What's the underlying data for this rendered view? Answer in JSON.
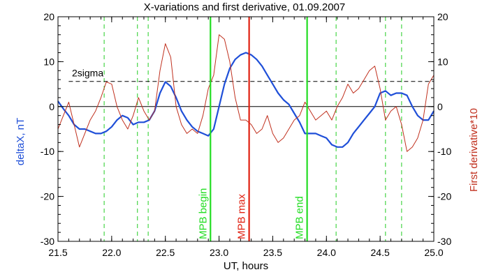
{
  "chart_data": {
    "type": "line",
    "title": "X-variations and first derivative, 01.09.2007",
    "xlabel": "UT, hours",
    "ylabel_left": "deltaX, nT",
    "ylabel_right": "First derivative*10",
    "xlim": [
      21.5,
      25.0
    ],
    "ylim": [
      -30,
      20
    ],
    "x_ticks": [
      "21.5",
      "22.0",
      "22.5",
      "23.0",
      "23.5",
      "24.0",
      "24.5",
      "25.0"
    ],
    "x_tick_values": [
      21.5,
      22.0,
      22.5,
      23.0,
      23.5,
      24.0,
      24.5,
      25.0
    ],
    "y_ticks": [
      "-30",
      "-20",
      "-10",
      "0",
      "10",
      "20"
    ],
    "y_tick_values": [
      -30,
      -20,
      -10,
      0,
      10,
      20
    ],
    "grid": false,
    "colors": {
      "deltaX": "#1f4fd8",
      "derivative": "#c0301e",
      "mpb_begin_end": "#22dd22",
      "mpb_max": "#e02010",
      "dashed_events": "#22cc22",
      "threshold": "#000000"
    },
    "threshold": {
      "label": "2sigma",
      "value": 5.6
    },
    "zero_line": 0,
    "vertical_markers": [
      {
        "label": "MPB begin",
        "x": 22.92,
        "style": "solid",
        "color": "#22dd22"
      },
      {
        "label": "MPB max",
        "x": 23.28,
        "style": "solid",
        "color": "#e02010"
      },
      {
        "label": "MPB end",
        "x": 23.82,
        "style": "solid",
        "color": "#22dd22"
      }
    ],
    "dashed_markers_x": [
      21.93,
      22.24,
      22.34,
      24.09,
      24.55,
      24.7
    ],
    "series": [
      {
        "key": "deltaX",
        "axis": "left",
        "x": [
          21.5,
          21.55,
          21.6,
          21.65,
          21.7,
          21.75,
          21.8,
          21.85,
          21.9,
          21.95,
          22.0,
          22.05,
          22.1,
          22.15,
          22.2,
          22.25,
          22.3,
          22.35,
          22.4,
          22.45,
          22.5,
          22.55,
          22.6,
          22.65,
          22.7,
          22.75,
          22.8,
          22.85,
          22.9,
          22.95,
          23.0,
          23.05,
          23.1,
          23.15,
          23.2,
          23.25,
          23.3,
          23.35,
          23.4,
          23.45,
          23.5,
          23.55,
          23.6,
          23.65,
          23.7,
          23.75,
          23.8,
          23.85,
          23.9,
          23.95,
          24.0,
          24.05,
          24.1,
          24.15,
          24.2,
          24.25,
          24.3,
          24.35,
          24.4,
          24.45,
          24.5,
          24.55,
          24.6,
          24.65,
          24.7,
          24.75,
          24.8,
          24.85,
          24.9,
          24.95,
          25.0
        ],
        "values": [
          1.2,
          -0.5,
          -2.0,
          -4.0,
          -5.0,
          -5.0,
          -5.5,
          -6.0,
          -6.0,
          -5.5,
          -4.5,
          -3.0,
          -2.0,
          -2.5,
          -4.0,
          -3.5,
          -3.5,
          -3.0,
          -1.0,
          3.0,
          5.5,
          4.5,
          2.0,
          -1.0,
          -3.0,
          -4.5,
          -5.5,
          -6.0,
          -6.5,
          -5.0,
          0.0,
          5.0,
          8.5,
          10.5,
          11.5,
          12.0,
          11.5,
          10.5,
          9.0,
          7.0,
          5.0,
          3.0,
          1.5,
          0.5,
          -1.5,
          -3.5,
          -6.0,
          -6.0,
          -6.0,
          -6.5,
          -7.0,
          -8.5,
          -9.0,
          -9.0,
          -8.0,
          -6.0,
          -4.5,
          -3.0,
          -1.5,
          0.0,
          3.0,
          3.5,
          2.5,
          3.0,
          3.0,
          2.5,
          0.0,
          -2.0,
          -3.0,
          -3.0,
          -1.0
        ]
      },
      {
        "key": "derivative",
        "axis": "right",
        "x": [
          21.5,
          21.55,
          21.6,
          21.65,
          21.7,
          21.75,
          21.8,
          21.85,
          21.9,
          21.95,
          22.0,
          22.05,
          22.1,
          22.15,
          22.2,
          22.25,
          22.3,
          22.35,
          22.4,
          22.45,
          22.5,
          22.55,
          22.6,
          22.65,
          22.7,
          22.75,
          22.8,
          22.85,
          22.9,
          22.95,
          23.0,
          23.05,
          23.1,
          23.15,
          23.2,
          23.25,
          23.3,
          23.35,
          23.4,
          23.45,
          23.5,
          23.55,
          23.6,
          23.65,
          23.7,
          23.75,
          23.8,
          23.85,
          23.9,
          23.95,
          24.0,
          24.05,
          24.1,
          24.15,
          24.2,
          24.25,
          24.3,
          24.35,
          24.4,
          24.45,
          24.5,
          24.55,
          24.6,
          24.65,
          24.7,
          24.75,
          24.8,
          24.85,
          24.9,
          24.95,
          25.0
        ],
        "values": [
          -5.0,
          -2.0,
          1.0,
          -4.0,
          -9.0,
          -6.0,
          -3.0,
          -1.0,
          2.0,
          5.5,
          5.0,
          0.0,
          -3.0,
          -5.0,
          -2.0,
          2.0,
          -1.0,
          -3.0,
          -1.0,
          8.0,
          14.0,
          11.0,
          0.0,
          -4.0,
          -6.0,
          -5.0,
          -6.0,
          -2.0,
          4.0,
          7.0,
          16.0,
          15.0,
          10.0,
          2.0,
          -3.0,
          -3.0,
          -4.0,
          -6.0,
          -5.0,
          -2.0,
          -6.0,
          -8.0,
          -7.0,
          -5.0,
          -3.0,
          -2.0,
          1.0,
          -1.0,
          -3.0,
          -2.0,
          -1.0,
          -3.0,
          0.0,
          2.0,
          5.0,
          3.0,
          4.0,
          6.0,
          8.0,
          9.0,
          4.0,
          -3.0,
          -1.0,
          0.0,
          -4.0,
          -10.0,
          -9.0,
          -7.0,
          -3.0,
          5.0,
          7.0
        ]
      }
    ]
  }
}
